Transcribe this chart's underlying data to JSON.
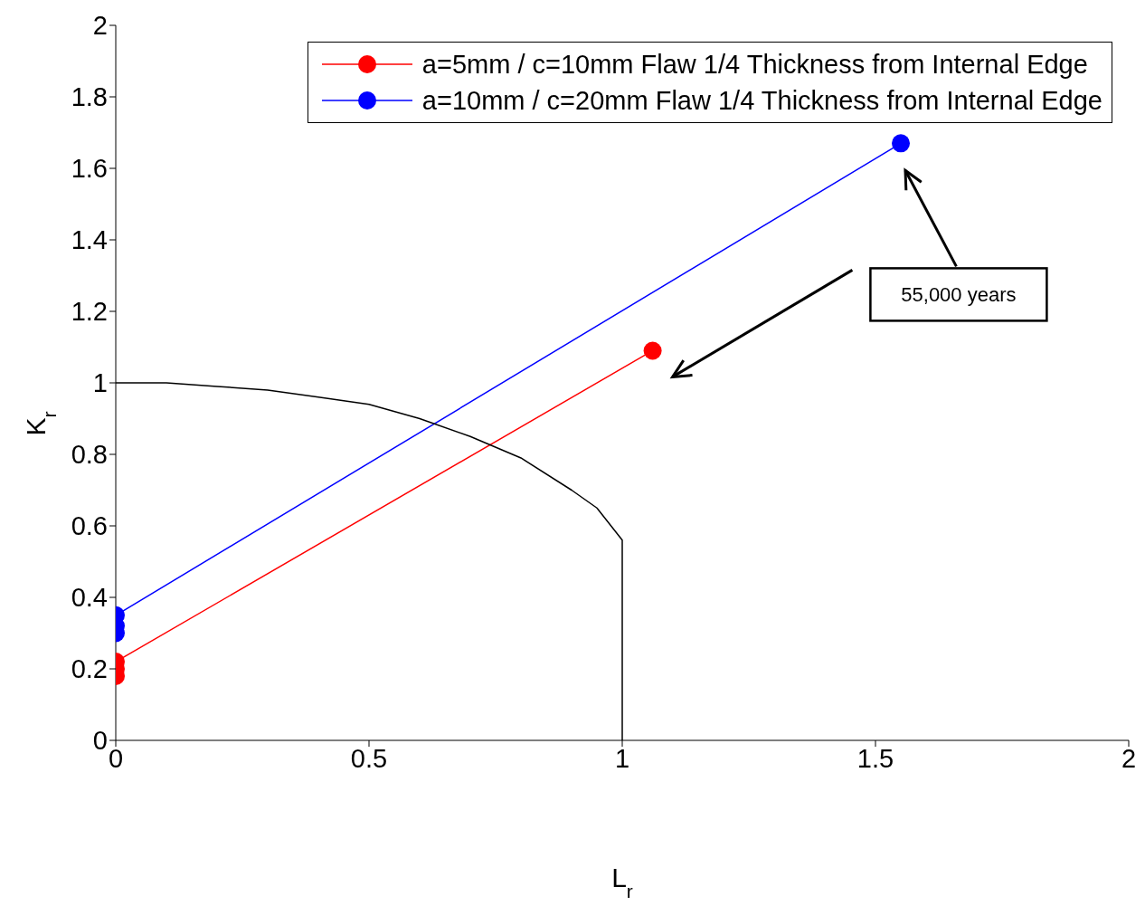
{
  "chart_data": {
    "type": "line",
    "xlabel": "L$_{r}$",
    "ylabel": "K$_{r}$",
    "xlim": [
      0,
      2
    ],
    "xticks": [
      0,
      0.5,
      1,
      1.5,
      2
    ],
    "ylim": [
      0,
      2
    ],
    "yticks": [
      0,
      0.2,
      0.4,
      0.6,
      0.8,
      1,
      1.2,
      1.4,
      1.6,
      1.8,
      2
    ],
    "grid": false,
    "legend": "top right",
    "marker": "circle",
    "line_style": "solid",
    "annotations": [
      "55,000 years"
    ],
    "series": [
      {
        "name": "a=5mm / c=10mm Flaw 1/4 Thickness from Internal Edge",
        "color": "#ff0000",
        "x": [
          0,
          0,
          0,
          1.06
        ],
        "values": [
          0.18,
          0.2,
          0.22,
          1.09
        ]
      },
      {
        "name": "a=10mm / c=20mm Flaw 1/4 Thickness from Internal Edge",
        "color": "#0000ff",
        "x": [
          0,
          0,
          0,
          1.55
        ],
        "values": [
          0.3,
          0.32,
          0.35,
          1.67
        ]
      },
      {
        "color": "#000000",
        "marker": "none",
        "x": [
          0,
          0.1,
          0.2,
          0.3,
          0.4,
          0.5,
          0.6,
          0.7,
          0.8,
          0.9,
          0.95,
          1,
          1
        ],
        "values": [
          1,
          1,
          0.99,
          0.98,
          0.96,
          0.94,
          0.9,
          0.85,
          0.79,
          0.7,
          0.65,
          0.56,
          0
        ]
      }
    ]
  }
}
